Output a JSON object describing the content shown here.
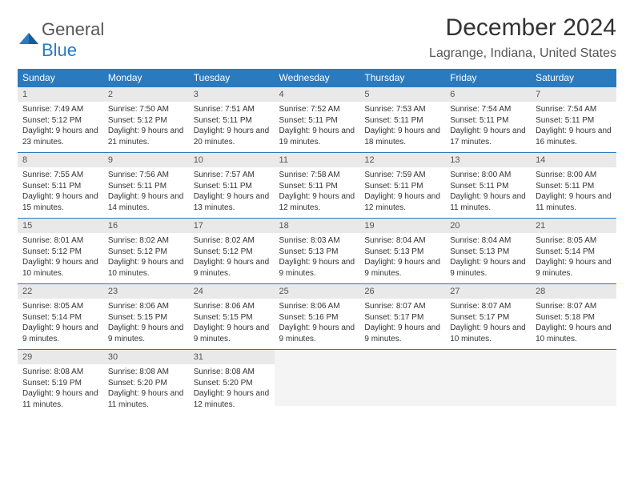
{
  "logo": {
    "general": "General",
    "blue": "Blue"
  },
  "title": "December 2024",
  "subtitle": "Lagrange, Indiana, United States",
  "colors": {
    "accent": "#2a7ac0",
    "header_bg": "#2a7ac0",
    "daynum_bg": "#e9e9e9",
    "text": "#333333"
  },
  "weekdays": [
    "Sunday",
    "Monday",
    "Tuesday",
    "Wednesday",
    "Thursday",
    "Friday",
    "Saturday"
  ],
  "weeks": [
    [
      {
        "n": "1",
        "sr": "Sunrise: 7:49 AM",
        "ss": "Sunset: 5:12 PM",
        "dl": "Daylight: 9 hours and 23 minutes."
      },
      {
        "n": "2",
        "sr": "Sunrise: 7:50 AM",
        "ss": "Sunset: 5:12 PM",
        "dl": "Daylight: 9 hours and 21 minutes."
      },
      {
        "n": "3",
        "sr": "Sunrise: 7:51 AM",
        "ss": "Sunset: 5:11 PM",
        "dl": "Daylight: 9 hours and 20 minutes."
      },
      {
        "n": "4",
        "sr": "Sunrise: 7:52 AM",
        "ss": "Sunset: 5:11 PM",
        "dl": "Daylight: 9 hours and 19 minutes."
      },
      {
        "n": "5",
        "sr": "Sunrise: 7:53 AM",
        "ss": "Sunset: 5:11 PM",
        "dl": "Daylight: 9 hours and 18 minutes."
      },
      {
        "n": "6",
        "sr": "Sunrise: 7:54 AM",
        "ss": "Sunset: 5:11 PM",
        "dl": "Daylight: 9 hours and 17 minutes."
      },
      {
        "n": "7",
        "sr": "Sunrise: 7:54 AM",
        "ss": "Sunset: 5:11 PM",
        "dl": "Daylight: 9 hours and 16 minutes."
      }
    ],
    [
      {
        "n": "8",
        "sr": "Sunrise: 7:55 AM",
        "ss": "Sunset: 5:11 PM",
        "dl": "Daylight: 9 hours and 15 minutes."
      },
      {
        "n": "9",
        "sr": "Sunrise: 7:56 AM",
        "ss": "Sunset: 5:11 PM",
        "dl": "Daylight: 9 hours and 14 minutes."
      },
      {
        "n": "10",
        "sr": "Sunrise: 7:57 AM",
        "ss": "Sunset: 5:11 PM",
        "dl": "Daylight: 9 hours and 13 minutes."
      },
      {
        "n": "11",
        "sr": "Sunrise: 7:58 AM",
        "ss": "Sunset: 5:11 PM",
        "dl": "Daylight: 9 hours and 12 minutes."
      },
      {
        "n": "12",
        "sr": "Sunrise: 7:59 AM",
        "ss": "Sunset: 5:11 PM",
        "dl": "Daylight: 9 hours and 12 minutes."
      },
      {
        "n": "13",
        "sr": "Sunrise: 8:00 AM",
        "ss": "Sunset: 5:11 PM",
        "dl": "Daylight: 9 hours and 11 minutes."
      },
      {
        "n": "14",
        "sr": "Sunrise: 8:00 AM",
        "ss": "Sunset: 5:11 PM",
        "dl": "Daylight: 9 hours and 11 minutes."
      }
    ],
    [
      {
        "n": "15",
        "sr": "Sunrise: 8:01 AM",
        "ss": "Sunset: 5:12 PM",
        "dl": "Daylight: 9 hours and 10 minutes."
      },
      {
        "n": "16",
        "sr": "Sunrise: 8:02 AM",
        "ss": "Sunset: 5:12 PM",
        "dl": "Daylight: 9 hours and 10 minutes."
      },
      {
        "n": "17",
        "sr": "Sunrise: 8:02 AM",
        "ss": "Sunset: 5:12 PM",
        "dl": "Daylight: 9 hours and 9 minutes."
      },
      {
        "n": "18",
        "sr": "Sunrise: 8:03 AM",
        "ss": "Sunset: 5:13 PM",
        "dl": "Daylight: 9 hours and 9 minutes."
      },
      {
        "n": "19",
        "sr": "Sunrise: 8:04 AM",
        "ss": "Sunset: 5:13 PM",
        "dl": "Daylight: 9 hours and 9 minutes."
      },
      {
        "n": "20",
        "sr": "Sunrise: 8:04 AM",
        "ss": "Sunset: 5:13 PM",
        "dl": "Daylight: 9 hours and 9 minutes."
      },
      {
        "n": "21",
        "sr": "Sunrise: 8:05 AM",
        "ss": "Sunset: 5:14 PM",
        "dl": "Daylight: 9 hours and 9 minutes."
      }
    ],
    [
      {
        "n": "22",
        "sr": "Sunrise: 8:05 AM",
        "ss": "Sunset: 5:14 PM",
        "dl": "Daylight: 9 hours and 9 minutes."
      },
      {
        "n": "23",
        "sr": "Sunrise: 8:06 AM",
        "ss": "Sunset: 5:15 PM",
        "dl": "Daylight: 9 hours and 9 minutes."
      },
      {
        "n": "24",
        "sr": "Sunrise: 8:06 AM",
        "ss": "Sunset: 5:15 PM",
        "dl": "Daylight: 9 hours and 9 minutes."
      },
      {
        "n": "25",
        "sr": "Sunrise: 8:06 AM",
        "ss": "Sunset: 5:16 PM",
        "dl": "Daylight: 9 hours and 9 minutes."
      },
      {
        "n": "26",
        "sr": "Sunrise: 8:07 AM",
        "ss": "Sunset: 5:17 PM",
        "dl": "Daylight: 9 hours and 9 minutes."
      },
      {
        "n": "27",
        "sr": "Sunrise: 8:07 AM",
        "ss": "Sunset: 5:17 PM",
        "dl": "Daylight: 9 hours and 10 minutes."
      },
      {
        "n": "28",
        "sr": "Sunrise: 8:07 AM",
        "ss": "Sunset: 5:18 PM",
        "dl": "Daylight: 9 hours and 10 minutes."
      }
    ],
    [
      {
        "n": "29",
        "sr": "Sunrise: 8:08 AM",
        "ss": "Sunset: 5:19 PM",
        "dl": "Daylight: 9 hours and 11 minutes."
      },
      {
        "n": "30",
        "sr": "Sunrise: 8:08 AM",
        "ss": "Sunset: 5:20 PM",
        "dl": "Daylight: 9 hours and 11 minutes."
      },
      {
        "n": "31",
        "sr": "Sunrise: 8:08 AM",
        "ss": "Sunset: 5:20 PM",
        "dl": "Daylight: 9 hours and 12 minutes."
      },
      {
        "empty": true
      },
      {
        "empty": true
      },
      {
        "empty": true
      },
      {
        "empty": true
      }
    ]
  ]
}
